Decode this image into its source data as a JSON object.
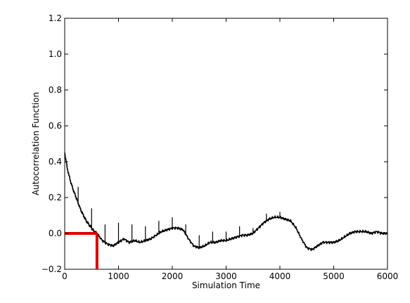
{
  "chart_data": {
    "type": "line",
    "title": "",
    "xlabel": "Simulation Time",
    "ylabel": "Autocorrelation Function",
    "xlim": [
      0,
      6000
    ],
    "ylim": [
      -0.2,
      1.2
    ],
    "xticks": [
      0,
      1000,
      2000,
      3000,
      4000,
      5000,
      6000
    ],
    "yticks": [
      -0.2,
      0.0,
      0.2,
      0.4,
      0.6,
      0.8,
      1.0,
      1.2
    ],
    "xtick_labels": [
      "0",
      "1000",
      "2000",
      "3000",
      "4000",
      "5000",
      "6000"
    ],
    "ytick_labels": [
      "−0.2",
      "0.0",
      "0.2",
      "0.4",
      "0.6",
      "0.8",
      "1.0",
      "1.2"
    ],
    "grid": false,
    "series": [
      {
        "color": "#000000",
        "x": [
          0,
          50,
          100,
          150,
          200,
          250,
          300,
          350,
          400,
          450,
          500,
          550,
          600,
          700,
          800,
          900,
          1000,
          1100,
          1200,
          1300,
          1400,
          1500,
          1600,
          1700,
          1800,
          1900,
          2000,
          2100,
          2200,
          2300,
          2400,
          2500,
          2600,
          2700,
          2800,
          2900,
          3000,
          3100,
          3200,
          3300,
          3400,
          3500,
          3600,
          3700,
          3800,
          3900,
          4000,
          4100,
          4200,
          4300,
          4400,
          4500,
          4600,
          4700,
          4800,
          4900,
          5000,
          5100,
          5200,
          5300,
          5400,
          5500,
          5600,
          5700,
          5800,
          5900,
          6000
        ],
        "y": [
          0.45,
          0.36,
          0.3,
          0.25,
          0.21,
          0.17,
          0.13,
          0.1,
          0.07,
          0.05,
          0.03,
          0.01,
          0.0,
          -0.04,
          -0.06,
          -0.07,
          -0.05,
          -0.03,
          -0.05,
          -0.04,
          -0.05,
          -0.04,
          -0.03,
          -0.01,
          0.01,
          0.02,
          0.03,
          0.03,
          0.02,
          -0.03,
          -0.07,
          -0.08,
          -0.07,
          -0.05,
          -0.05,
          -0.04,
          -0.04,
          -0.03,
          -0.02,
          -0.01,
          -0.01,
          0.0,
          0.03,
          0.06,
          0.08,
          0.09,
          0.09,
          0.08,
          0.07,
          0.03,
          -0.03,
          -0.08,
          -0.09,
          -0.07,
          -0.05,
          -0.05,
          -0.05,
          -0.04,
          -0.02,
          0.0,
          0.01,
          0.01,
          0.01,
          0.0,
          0.01,
          0.0,
          0.0
        ]
      }
    ],
    "spikes": [
      {
        "x": 250,
        "y": 0.26
      },
      {
        "x": 500,
        "y": 0.14
      },
      {
        "x": 750,
        "y": 0.05
      },
      {
        "x": 1000,
        "y": 0.06
      },
      {
        "x": 1250,
        "y": 0.05
      },
      {
        "x": 1500,
        "y": 0.04
      },
      {
        "x": 1750,
        "y": 0.07
      },
      {
        "x": 2000,
        "y": 0.09
      },
      {
        "x": 2250,
        "y": 0.05
      },
      {
        "x": 2500,
        "y": -0.01
      },
      {
        "x": 2750,
        "y": 0.01
      },
      {
        "x": 3000,
        "y": 0.01
      },
      {
        "x": 3250,
        "y": 0.04
      },
      {
        "x": 3500,
        "y": 0.03
      },
      {
        "x": 3750,
        "y": 0.11
      },
      {
        "x": 4000,
        "y": 0.12
      }
    ],
    "annotation": {
      "color": "#dd0000",
      "y": 0.0,
      "x": 600
    }
  }
}
